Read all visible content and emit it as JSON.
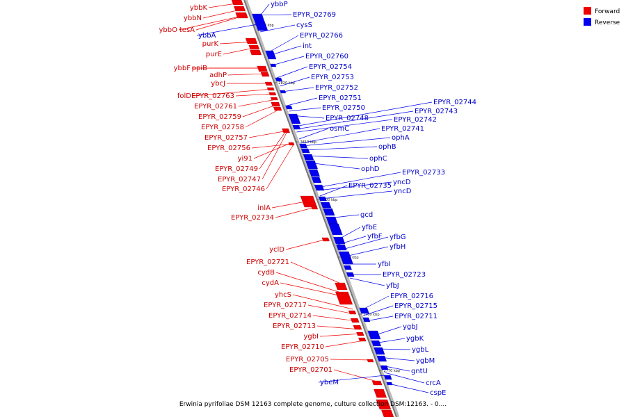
{
  "legend": [
    {
      "label": "Forward",
      "color": "#ee0000"
    },
    {
      "label": "Reverse",
      "color": "#0000ee"
    }
  ],
  "caption": "Erwinia pyrifoliae DSM 12163 complete genome, culture collection DSM:12163. - 0....",
  "ticks": [
    "2830 kbp",
    "2820 kbp",
    "2810 kbp",
    "2800 kbp",
    "2790 kbp",
    "2780 kbp",
    "2770 kbp"
  ],
  "forward_genes": [
    "ybbK",
    "ybbN",
    "ybbO",
    "tesA",
    "purK",
    "purE",
    "ybbF",
    "ppiB",
    "adhP",
    "ybcJ",
    "folD",
    "EPYR_02763",
    "EPYR_02761",
    "EPYR_02759",
    "EPYR_02758",
    "EPYR_02757",
    "EPYR_02756",
    "yi91",
    "EPYR_02749",
    "EPYR_02747",
    "EPYR_02746",
    "inlA",
    "EPYR_02734",
    "yclD",
    "EPYR_02721",
    "cydB",
    "cydA",
    "yhcS",
    "EPYR_02717",
    "EPYR_02714",
    "EPYR_02713",
    "ygbI",
    "EPYR_02710",
    "EPYR_02705",
    "EPYR_02701"
  ],
  "reverse_genes": [
    "ybbP",
    "EPYR_02769",
    "ybbA",
    "cysS",
    "EPYR_02766",
    "int",
    "EPYR_02760",
    "EPYR_02754",
    "EPYR_02753",
    "EPYR_02752",
    "EPYR_02751",
    "EPYR_02750",
    "EPYR_02748",
    "EPYR_02744",
    "EPYR_02743",
    "EPYR_02742",
    "osmC",
    "EPYR_02741",
    "ophA",
    "ophB",
    "ophC",
    "ophD",
    "EPYR_02733",
    "yncD",
    "EPYR_02735",
    "yncD",
    "gcd",
    "yfbE",
    "yfbF",
    "yfbG",
    "yfbH",
    "yfbI",
    "EPYR_02723",
    "yfbJ",
    "EPYR_02716",
    "EPYR_02715",
    "EPYR_02711",
    "ygbJ",
    "ygbK",
    "ygbL",
    "ygbM",
    "gntU",
    "ybeM",
    "crcA",
    "cspE"
  ]
}
